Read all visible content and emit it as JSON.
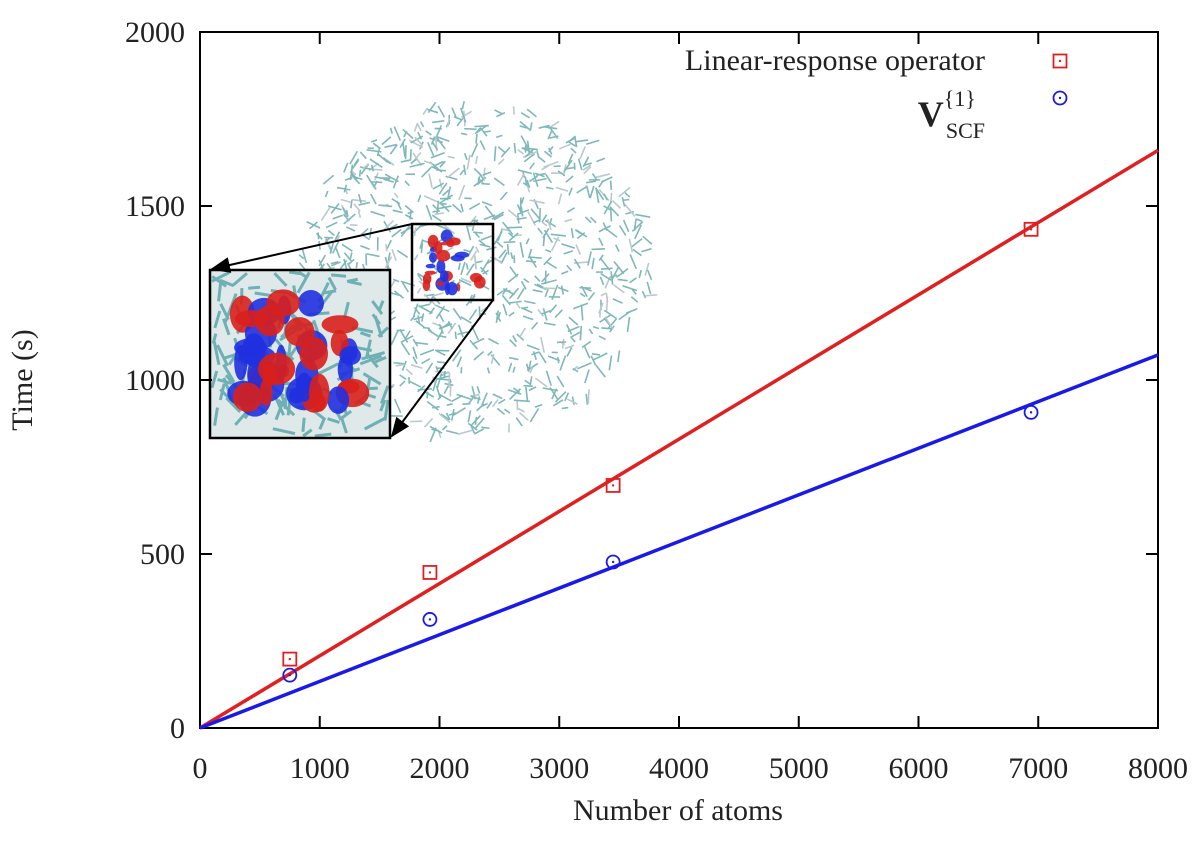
{
  "chart_data": {
    "type": "scatter",
    "xlabel": "Number of atoms",
    "ylabel": "Time (s)",
    "xlim": [
      0,
      8000
    ],
    "ylim": [
      0,
      2000
    ],
    "xticks": [
      0,
      1000,
      2000,
      3000,
      4000,
      5000,
      6000,
      7000,
      8000
    ],
    "yticks": [
      0,
      500,
      1000,
      1500,
      2000
    ],
    "grid": false,
    "legend": "top-right",
    "series": [
      {
        "name": "Linear-response operator",
        "marker": "square",
        "color": "#e02020",
        "x": [
          750,
          1920,
          3450,
          6940
        ],
        "values": [
          198,
          447,
          697,
          1433
        ]
      },
      {
        "name": "V",
        "name_sup": "{1}",
        "name_sub": "SCF",
        "marker": "circle",
        "color": "#1a1ae6",
        "x": [
          750,
          1920,
          3450,
          6940
        ],
        "values": [
          152,
          312,
          477,
          907
        ]
      }
    ],
    "fits": [
      {
        "color": "#e02020",
        "x": [
          0,
          8000
        ],
        "values": [
          0,
          1660
        ]
      },
      {
        "color": "#1a1ae6",
        "x": [
          0,
          8000
        ],
        "values": [
          0,
          1072
        ]
      }
    ]
  }
}
